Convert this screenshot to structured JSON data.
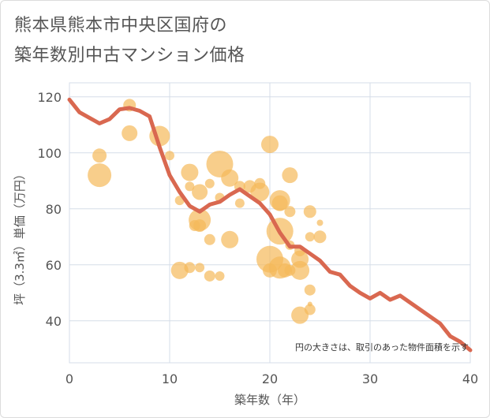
{
  "title_line1": "熊本県熊本市中央区国府の",
  "title_line2": "築年数別中古マンション価格",
  "chart_data": {
    "type": "scatter",
    "xlabel": "築年数（年）",
    "ylabel": "坪（3.3㎡）単価（万円）",
    "xlim": [
      0,
      40
    ],
    "ylim": [
      25,
      125
    ],
    "xticks": [
      0,
      10,
      20,
      30,
      40
    ],
    "yticks": [
      40,
      60,
      80,
      100,
      120
    ],
    "grid": true,
    "annotation": "円の大きさは、取引のあった物件面積を示す",
    "colors": {
      "bubble": "#f5b95a",
      "line": "#d96850",
      "grid": "#d5dde8",
      "plot_bg": "#ffffff"
    },
    "bubbles": [
      {
        "x": 3,
        "y": 99,
        "s": 9
      },
      {
        "x": 3,
        "y": 92,
        "s": 15
      },
      {
        "x": 6,
        "y": 117,
        "s": 8
      },
      {
        "x": 6,
        "y": 107,
        "s": 10
      },
      {
        "x": 9,
        "y": 106,
        "s": 13
      },
      {
        "x": 10,
        "y": 99,
        "s": 6
      },
      {
        "x": 11,
        "y": 83,
        "s": 6
      },
      {
        "x": 11,
        "y": 58,
        "s": 11
      },
      {
        "x": 12,
        "y": 93,
        "s": 11
      },
      {
        "x": 12,
        "y": 88,
        "s": 6
      },
      {
        "x": 12,
        "y": 59,
        "s": 7
      },
      {
        "x": 12.5,
        "y": 74,
        "s": 7
      },
      {
        "x": 13,
        "y": 86,
        "s": 10
      },
      {
        "x": 13,
        "y": 76,
        "s": 14
      },
      {
        "x": 13,
        "y": 74,
        "s": 8
      },
      {
        "x": 13,
        "y": 59,
        "s": 6
      },
      {
        "x": 14,
        "y": 89,
        "s": 6
      },
      {
        "x": 14,
        "y": 69,
        "s": 7
      },
      {
        "x": 14,
        "y": 56,
        "s": 7
      },
      {
        "x": 15,
        "y": 96,
        "s": 17
      },
      {
        "x": 15,
        "y": 84,
        "s": 6
      },
      {
        "x": 15,
        "y": 56,
        "s": 6
      },
      {
        "x": 16,
        "y": 91,
        "s": 11
      },
      {
        "x": 16,
        "y": 69,
        "s": 11
      },
      {
        "x": 17,
        "y": 88,
        "s": 7
      },
      {
        "x": 17,
        "y": 82,
        "s": 6
      },
      {
        "x": 18,
        "y": 88,
        "s": 8
      },
      {
        "x": 19,
        "y": 89,
        "s": 7
      },
      {
        "x": 19,
        "y": 86,
        "s": 12
      },
      {
        "x": 20,
        "y": 103,
        "s": 11
      },
      {
        "x": 20,
        "y": 62,
        "s": 17
      },
      {
        "x": 20,
        "y": 58,
        "s": 9
      },
      {
        "x": 21,
        "y": 83,
        "s": 13
      },
      {
        "x": 21,
        "y": 82,
        "s": 10
      },
      {
        "x": 21,
        "y": 72,
        "s": 17
      },
      {
        "x": 21,
        "y": 59,
        "s": 14
      },
      {
        "x": 21.5,
        "y": 58,
        "s": 9
      },
      {
        "x": 22,
        "y": 92,
        "s": 10
      },
      {
        "x": 22,
        "y": 79,
        "s": 7
      },
      {
        "x": 22,
        "y": 67,
        "s": 6
      },
      {
        "x": 22,
        "y": 58,
        "s": 7
      },
      {
        "x": 23,
        "y": 65,
        "s": 7
      },
      {
        "x": 23,
        "y": 62,
        "s": 11
      },
      {
        "x": 23,
        "y": 58,
        "s": 12
      },
      {
        "x": 23,
        "y": 42,
        "s": 11
      },
      {
        "x": 24,
        "y": 79,
        "s": 8
      },
      {
        "x": 24,
        "y": 70,
        "s": 6
      },
      {
        "x": 24,
        "y": 51,
        "s": 7
      },
      {
        "x": 24,
        "y": 46,
        "s": 3
      },
      {
        "x": 24,
        "y": 44,
        "s": 7
      },
      {
        "x": 25,
        "y": 75,
        "s": 4
      },
      {
        "x": 25,
        "y": 70,
        "s": 8
      }
    ],
    "line": {
      "x": [
        0,
        1,
        2,
        3,
        4,
        5,
        6,
        7,
        8,
        9,
        10,
        11,
        12,
        13,
        14,
        15,
        16,
        17,
        18,
        19,
        20,
        21,
        22,
        23,
        24,
        25,
        26,
        27,
        28,
        29,
        30,
        31,
        32,
        33,
        34,
        35,
        36,
        37,
        38,
        39,
        40
      ],
      "y": [
        119,
        114.5,
        112.5,
        110.5,
        112,
        115.5,
        116,
        115,
        113,
        102,
        92,
        86,
        81,
        79,
        81.5,
        82.5,
        85,
        87,
        84.5,
        82,
        78,
        71.5,
        66.5,
        66.5,
        64,
        61.5,
        57.5,
        56.5,
        52.5,
        50,
        48,
        50,
        47.5,
        49,
        46.5,
        44,
        41.5,
        39,
        34.5,
        32.5,
        29.5
      ]
    }
  }
}
